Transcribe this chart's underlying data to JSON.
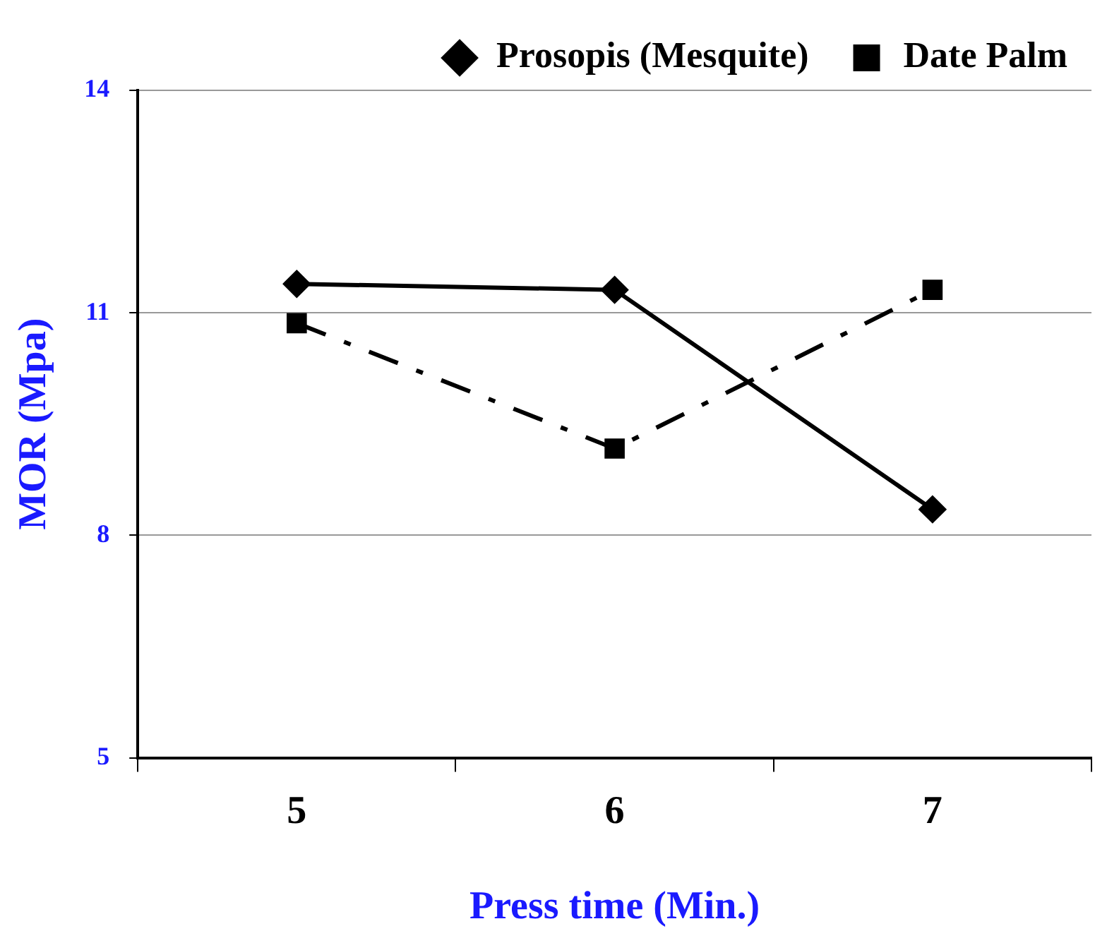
{
  "chart_data": {
    "type": "line",
    "xlabel": "Press time (Min.)",
    "ylabel": "MOR (Mpa)",
    "categories": [
      "5",
      "6",
      "7"
    ],
    "series": [
      {
        "name": "Prosopis (Mesquite)",
        "color": "#000000",
        "values": [
          11.39,
          11.31,
          8.35
        ],
        "marker": "diamond",
        "line_style": "solid"
      },
      {
        "name": "Date Palm",
        "color": "#000000",
        "values": [
          10.86,
          9.17,
          11.31
        ],
        "marker": "square",
        "line_style": "dashed"
      }
    ],
    "ylim": [
      5,
      14
    ],
    "yticks": [
      5,
      8,
      11,
      14
    ],
    "grid": "y",
    "legend": "top right"
  }
}
